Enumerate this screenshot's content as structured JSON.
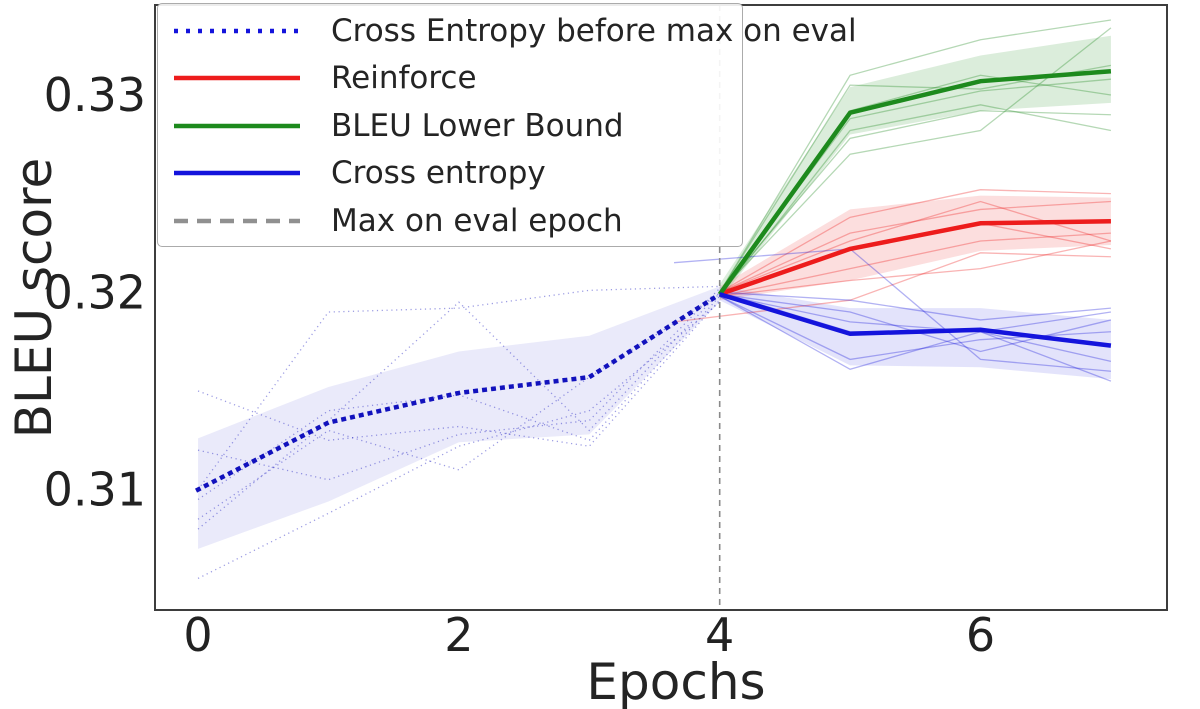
{
  "page": {
    "background": "#ffffff"
  },
  "chart_data": {
    "type": "line",
    "title": "",
    "xlabel": "Epochs",
    "ylabel": "BLEU score",
    "x_ticks": [
      0,
      2,
      4,
      6
    ],
    "x_tick_labels": [
      "0",
      "2",
      "4",
      "6"
    ],
    "y_ticks": [
      0.31,
      0.32,
      0.33
    ],
    "y_tick_labels": [
      "0.31",
      "0.32",
      "0.33"
    ],
    "xlim": [
      -0.33,
      7.43
    ],
    "ylim": [
      0.3039,
      0.33456
    ],
    "grid": false,
    "legend_position": "upper-left",
    "axis_color": "#3d3d3d",
    "tick_text_color": "#222222",
    "vline": {
      "x": 4,
      "color": "#8a8a8a",
      "style": "dashed",
      "label": "Max on eval epoch"
    },
    "legend": [
      {
        "label": "Cross Entropy before max on eval",
        "color": "#1414dc",
        "style": "dotted"
      },
      {
        "label": "Reinforce",
        "color": "#ed1c1c",
        "style": "solid"
      },
      {
        "label": "BLEU Lower Bound",
        "color": "#1d8a1d",
        "style": "solid"
      },
      {
        "label": "Cross entropy",
        "color": "#1414dc",
        "style": "solid"
      },
      {
        "label": "Max on eval epoch",
        "color": "#909090",
        "style": "dashed"
      }
    ],
    "series": [
      {
        "name": "Cross Entropy before max on eval",
        "style": "dotted",
        "color": "#1212bd",
        "band_fill": "rgba(90,90,220,0.13)",
        "x": [
          0,
          1,
          2,
          3,
          4
        ],
        "y": [
          0.31,
          0.3134,
          0.3149,
          0.3157,
          0.3199
        ],
        "band_upper": [
          0.3126,
          0.3152,
          0.317,
          0.3178,
          0.3203
        ],
        "band_lower": [
          0.307,
          0.3094,
          0.3124,
          0.3128,
          0.3195
        ],
        "runs": [
          {
            "x": [
              0,
              1,
              2,
              3,
              4
            ],
            "y": [
              0.315,
              0.3125,
              0.3132,
              0.3122,
              0.3196
            ]
          },
          {
            "x": [
              0,
              1,
              2,
              3,
              4
            ],
            "y": [
              0.31,
              0.319,
              0.3192,
              0.3201,
              0.3203
            ]
          },
          {
            "x": [
              0,
              1,
              2,
              3,
              4
            ],
            "y": [
              0.3055,
              0.3088,
              0.3122,
              0.314,
              0.3195
            ]
          },
          {
            "x": [
              0,
              1,
              2,
              3,
              4
            ],
            "y": [
              0.308,
              0.3135,
              0.3195,
              0.313,
              0.32
            ]
          },
          {
            "x": [
              0,
              1,
              2,
              3,
              4
            ],
            "y": [
              0.3095,
              0.314,
              0.3148,
              0.3125,
              0.3198
            ]
          },
          {
            "x": [
              0,
              1,
              2,
              3,
              4
            ],
            "y": [
              0.312,
              0.3105,
              0.3128,
              0.3135,
              0.3202
            ]
          },
          {
            "x": [
              0,
              1,
              2,
              3,
              4
            ],
            "y": [
              0.3085,
              0.313,
              0.311,
              0.3157,
              0.3199
            ]
          }
        ]
      },
      {
        "name": "Reinforce",
        "style": "solid",
        "color": "#ed1c1c",
        "band_fill": "rgba(240,60,60,0.17)",
        "x": [
          4,
          5,
          6,
          7
        ],
        "y": [
          0.3199,
          0.3222,
          0.3235,
          0.3236
        ],
        "band_upper": [
          0.3203,
          0.3242,
          0.3249,
          0.3248
        ],
        "band_lower": [
          0.3196,
          0.3206,
          0.3221,
          0.3224
        ],
        "runs": [
          {
            "x": [
              4,
              5,
              6,
              7
            ],
            "y": [
              0.32,
              0.3238,
              0.3252,
              0.325
            ]
          },
          {
            "x": [
              4,
              5,
              6,
              7
            ],
            "y": [
              0.32,
              0.323,
              0.3242,
              0.3246
            ]
          },
          {
            "x": [
              4,
              5,
              6,
              7
            ],
            "y": [
              0.32,
              0.3222,
              0.3235,
              0.3222
            ]
          },
          {
            "x": [
              4,
              5,
              6,
              7
            ],
            "y": [
              0.3198,
              0.3212,
              0.3226,
              0.323
            ]
          },
          {
            "x": [
              4,
              5,
              6,
              7
            ],
            "y": [
              0.3198,
              0.3206,
              0.3212,
              0.3226
            ]
          },
          {
            "x": [
              3.65,
              5,
              6,
              7
            ],
            "y": [
              0.3185,
              0.3196,
              0.322,
              0.3218
            ]
          },
          {
            "x": [
              4,
              5,
              6,
              7
            ],
            "y": [
              0.32,
              0.3226,
              0.3246,
              0.3226
            ]
          }
        ]
      },
      {
        "name": "BLEU Lower Bound",
        "style": "solid",
        "color": "#1d8a1d",
        "band_fill": "rgba(40,150,40,0.17)",
        "x": [
          4,
          5,
          6,
          7
        ],
        "y": [
          0.3199,
          0.3291,
          0.3307,
          0.3312
        ],
        "band_upper": [
          0.3204,
          0.3304,
          0.332,
          0.333
        ],
        "band_lower": [
          0.3196,
          0.328,
          0.3292,
          0.3296
        ],
        "runs": [
          {
            "x": [
              4,
              5,
              6,
              7
            ],
            "y": [
              0.32,
              0.331,
              0.3328,
              0.3338
            ]
          },
          {
            "x": [
              4,
              5,
              6,
              7
            ],
            "y": [
              0.32,
              0.3305,
              0.3303,
              0.3315
            ]
          },
          {
            "x": [
              4,
              5,
              6,
              7
            ],
            "y": [
              0.32,
              0.3292,
              0.331,
              0.33
            ]
          },
          {
            "x": [
              4,
              5,
              6,
              7
            ],
            "y": [
              0.32,
              0.3288,
              0.3302,
              0.3308
            ]
          },
          {
            "x": [
              4,
              5,
              6,
              7
            ],
            "y": [
              0.32,
              0.3278,
              0.3292,
              0.329
            ]
          },
          {
            "x": [
              4,
              5,
              6,
              7
            ],
            "y": [
              0.32,
              0.327,
              0.3282,
              0.3334
            ]
          },
          {
            "x": [
              4,
              5,
              6,
              7
            ],
            "y": [
              0.3198,
              0.3282,
              0.3295,
              0.3282
            ]
          }
        ]
      },
      {
        "name": "Cross entropy",
        "style": "solid",
        "color": "#1414dc",
        "band_fill": "rgba(60,60,230,0.14)",
        "x": [
          4,
          5,
          6,
          7
        ],
        "y": [
          0.3199,
          0.3179,
          0.3181,
          0.3173
        ],
        "band_upper": [
          0.3203,
          0.3192,
          0.3192,
          0.3186
        ],
        "band_lower": [
          0.3196,
          0.3163,
          0.3162,
          0.3156
        ],
        "runs": [
          {
            "x": [
              4,
              5,
              6,
              7
            ],
            "y": [
              0.32,
              0.3196,
              0.3186,
              0.3192
            ]
          },
          {
            "x": [
              4,
              5,
              6,
              7
            ],
            "y": [
              0.3199,
              0.319,
              0.317,
              0.3186
            ]
          },
          {
            "x": [
              4,
              5,
              6,
              7
            ],
            "y": [
              0.3199,
              0.3185,
              0.318,
              0.3165
            ]
          },
          {
            "x": [
              4,
              5,
              6,
              7
            ],
            "y": [
              0.3198,
              0.3166,
              0.3176,
              0.318
            ]
          },
          {
            "x": [
              4,
              5,
              6,
              7
            ],
            "y": [
              0.3198,
              0.3161,
              0.318,
              0.3155
            ]
          },
          {
            "x": [
              3.65,
              5,
              6,
              7
            ],
            "y": [
              0.3215,
              0.3222,
              0.3166,
              0.316
            ]
          },
          {
            "x": [
              4,
              5,
              6,
              7
            ],
            "y": [
              0.32,
              0.318,
              0.318,
              0.319
            ]
          }
        ]
      }
    ]
  }
}
